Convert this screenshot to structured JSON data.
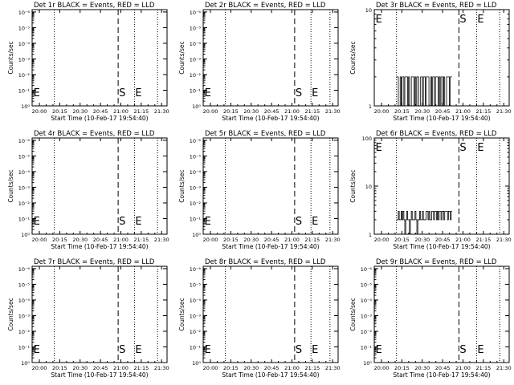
{
  "chart_data": [
    {
      "type": "line",
      "title": "Det 1r BLACK = Events, RED = LLD",
      "xlabel": "Start Time (10-Feb-17 19:54:40)",
      "ylabel": "Counts/sec",
      "xticks": [
        "20:00",
        "20:15",
        "20:30",
        "20:45",
        "21:00",
        "21:15",
        "21:30"
      ],
      "yscale": "log",
      "ytick_labels": [
        "10⁰",
        "10⁻¹",
        "10⁻²",
        "10⁻³",
        "10⁻⁴",
        "10⁻⁵",
        "10⁻⁶"
      ],
      "markers": [
        {
          "label": "E",
          "time": "19:55",
          "style": "dotted"
        },
        {
          "label": "S",
          "time": "20:58",
          "style": "dashed"
        },
        {
          "label": "E",
          "time": "21:10",
          "style": "dotted"
        }
      ],
      "dotted_lines": [
        "20:11",
        "21:27"
      ],
      "series": []
    },
    {
      "type": "line",
      "title": "Det 2r BLACK = Events, RED = LLD",
      "xlabel": "Start Time (10-Feb-17 19:54:40)",
      "ylabel": "Counts/sec",
      "xticks": [
        "20:00",
        "20:15",
        "20:30",
        "20:45",
        "21:00",
        "21:15",
        "21:30"
      ],
      "yscale": "log",
      "ytick_labels": [
        "10⁰",
        "10⁻¹",
        "10⁻²",
        "10⁻³",
        "10⁻⁴",
        "10⁻⁵",
        "10⁻⁶"
      ],
      "markers": [
        {
          "label": "E",
          "time": "19:55",
          "style": "dotted"
        },
        {
          "label": "S",
          "time": "21:02",
          "style": "dashed"
        },
        {
          "label": "E",
          "time": "21:14",
          "style": "dotted"
        }
      ],
      "dotted_lines": [
        "20:11",
        "21:28"
      ],
      "series": []
    },
    {
      "type": "line",
      "title": "Det 3r BLACK = Events, RED = LLD",
      "xlabel": "Start Time (10-Feb-17 19:54:40)",
      "ylabel": "Counts/sec",
      "xticks": [
        "20:00",
        "20:15",
        "20:30",
        "20:45",
        "21:00",
        "21:15",
        "21:30"
      ],
      "yscale": "log",
      "ylim": [
        1,
        10
      ],
      "ytick_labels": [
        "1",
        "10"
      ],
      "markers": [
        {
          "label": "E",
          "time": "19:55",
          "style": "dotted"
        },
        {
          "label": "S",
          "time": "20:57",
          "style": "dashed"
        },
        {
          "label": "E",
          "time": "21:10",
          "style": "dotted"
        }
      ],
      "dotted_lines": [
        "20:11",
        "21:27"
      ],
      "series": [
        {
          "x_start": "20:11",
          "x_end": "20:52",
          "levels": [
            1,
            2
          ],
          "pattern": [
            2,
            2,
            1,
            1,
            2,
            1,
            2,
            2,
            1,
            2,
            2,
            2,
            1,
            2,
            1,
            1,
            2,
            2,
            2,
            1,
            2,
            1,
            2,
            2,
            1,
            1,
            2,
            2,
            1,
            2,
            2,
            1,
            2,
            2,
            2,
            1,
            1,
            2,
            1,
            2,
            2,
            1,
            2,
            2,
            2,
            1,
            2,
            1,
            2,
            2,
            1,
            2,
            1,
            1,
            2,
            2,
            2,
            1,
            2,
            2
          ]
        }
      ]
    },
    {
      "type": "line",
      "title": "Det 4r BLACK = Events, RED = LLD",
      "xlabel": "Start Time (10-Feb-17 19:54:40)",
      "ylabel": "Counts/sec",
      "xticks": [
        "20:00",
        "20:15",
        "20:30",
        "20:45",
        "21:00",
        "21:15",
        "21:30"
      ],
      "yscale": "log",
      "ytick_labels": [
        "10⁰",
        "10⁻¹",
        "10⁻²",
        "10⁻³",
        "10⁻⁴",
        "10⁻⁵",
        "10⁻⁶"
      ],
      "markers": [
        {
          "label": "E",
          "time": "19:55",
          "style": "dotted"
        },
        {
          "label": "S",
          "time": "20:58",
          "style": "dashed"
        },
        {
          "label": "E",
          "time": "21:10",
          "style": "dotted"
        }
      ],
      "dotted_lines": [
        "20:11",
        "21:27"
      ],
      "series": []
    },
    {
      "type": "line",
      "title": "Det 5r BLACK = Events, RED = LLD",
      "xlabel": "Start Time (10-Feb-17 19:54:40)",
      "ylabel": "Counts/sec",
      "xticks": [
        "20:00",
        "20:15",
        "20:30",
        "20:45",
        "21:00",
        "21:15",
        "21:30"
      ],
      "yscale": "log",
      "ytick_labels": [
        "10⁰",
        "10⁻¹",
        "10⁻²",
        "10⁻³",
        "10⁻⁴",
        "10⁻⁵",
        "10⁻⁶"
      ],
      "markers": [
        {
          "label": "E",
          "time": "19:55",
          "style": "dotted"
        },
        {
          "label": "S",
          "time": "21:02",
          "style": "dashed"
        },
        {
          "label": "E",
          "time": "21:14",
          "style": "dotted"
        }
      ],
      "dotted_lines": [
        "20:11",
        "21:28"
      ],
      "series": []
    },
    {
      "type": "line",
      "title": "Det 6r BLACK = Events, RED = LLD",
      "xlabel": "Start Time (10-Feb-17 19:54:40)",
      "ylabel": "Counts/sec",
      "xticks": [
        "20:00",
        "20:15",
        "20:30",
        "20:45",
        "21:00",
        "21:15",
        "21:30"
      ],
      "yscale": "log",
      "ylim": [
        1,
        100
      ],
      "ytick_labels": [
        "1",
        "10",
        "100"
      ],
      "markers": [
        {
          "label": "E",
          "time": "19:55",
          "style": "dotted"
        },
        {
          "label": "S",
          "time": "20:57",
          "style": "dashed"
        },
        {
          "label": "E",
          "time": "21:10",
          "style": "dotted"
        }
      ],
      "dotted_lines": [
        "20:11",
        "21:27"
      ],
      "series": [
        {
          "x_start": "20:11",
          "x_end": "20:52",
          "levels": [
            1,
            2,
            3
          ],
          "pattern": [
            2,
            2,
            3,
            2,
            2,
            3,
            2,
            3,
            2,
            1,
            2,
            3,
            2,
            2,
            1,
            2,
            3,
            2,
            2,
            2,
            3,
            2,
            1,
            2,
            2,
            3,
            2,
            2,
            3,
            2,
            2,
            2,
            3,
            3,
            2,
            3,
            2,
            2,
            3,
            3,
            2,
            3,
            3,
            2,
            3,
            2,
            3,
            3,
            2,
            3,
            3,
            2,
            3,
            3,
            3,
            2,
            3,
            3,
            2,
            3
          ]
        }
      ]
    },
    {
      "type": "line",
      "title": "Det 7r BLACK = Events, RED = LLD",
      "xlabel": "Start Time (10-Feb-17 19:54:40)",
      "ylabel": "Counts/sec",
      "xticks": [
        "20:00",
        "20:15",
        "20:30",
        "20:45",
        "21:00",
        "21:15",
        "21:30"
      ],
      "yscale": "log",
      "ytick_labels": [
        "10⁰",
        "10⁻¹",
        "10⁻²",
        "10⁻³",
        "10⁻⁴",
        "10⁻⁵",
        "10⁻⁶"
      ],
      "markers": [
        {
          "label": "E",
          "time": "19:55",
          "style": "dotted"
        },
        {
          "label": "S",
          "time": "20:58",
          "style": "dashed"
        },
        {
          "label": "E",
          "time": "21:10",
          "style": "dotted"
        }
      ],
      "dotted_lines": [
        "20:11",
        "21:27"
      ],
      "series": []
    },
    {
      "type": "line",
      "title": "Det 8r BLACK = Events, RED = LLD",
      "xlabel": "Start Time (10-Feb-17 19:54:40)",
      "ylabel": "Counts/sec",
      "xticks": [
        "20:00",
        "20:15",
        "20:30",
        "20:45",
        "21:00",
        "21:15",
        "21:30"
      ],
      "yscale": "log",
      "ytick_labels": [
        "10⁰",
        "10⁻¹",
        "10⁻²",
        "10⁻³",
        "10⁻⁴",
        "10⁻⁵",
        "10⁻⁶"
      ],
      "markers": [
        {
          "label": "E",
          "time": "19:55",
          "style": "dotted"
        },
        {
          "label": "S",
          "time": "21:02",
          "style": "dashed"
        },
        {
          "label": "E",
          "time": "21:14",
          "style": "dotted"
        }
      ],
      "dotted_lines": [
        "20:11",
        "21:28"
      ],
      "series": []
    },
    {
      "type": "line",
      "title": "Det 9r BLACK = Events, RED = LLD",
      "xlabel": "Start Time (10-Feb-17 19:54:40)",
      "ylabel": "Counts/sec",
      "xticks": [
        "20:00",
        "20:15",
        "20:30",
        "20:45",
        "21:00",
        "21:15",
        "21:30"
      ],
      "yscale": "log",
      "ytick_labels": [
        "10⁰",
        "10⁻¹",
        "10⁻²",
        "10⁻³",
        "10⁻⁴",
        "10⁻⁵",
        "10⁻⁶"
      ],
      "markers": [
        {
          "label": "E",
          "time": "19:55",
          "style": "dotted"
        },
        {
          "label": "S",
          "time": "20:57",
          "style": "dashed"
        },
        {
          "label": "E",
          "time": "21:10",
          "style": "dotted"
        }
      ],
      "dotted_lines": [
        "20:11",
        "21:27"
      ],
      "series": []
    }
  ]
}
